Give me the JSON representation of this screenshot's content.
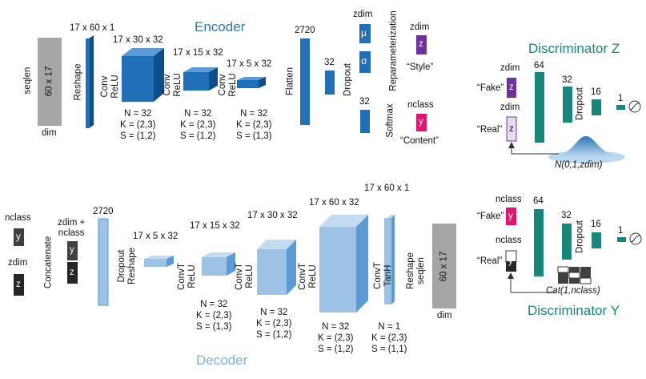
{
  "encoder": {
    "title": "Encoder",
    "input": {
      "side_label": "seqlen",
      "inner_label": "60 x 17",
      "bottom_label": "dim"
    },
    "reshape": {
      "dims": "17 x 60 x 1",
      "op": "Reshape"
    },
    "conv1": {
      "dims": "17 x 30 x 32",
      "op": "Conv\nReLU",
      "n": "N = 32",
      "k": "K = (2,3)",
      "s": "S = (1,2)"
    },
    "conv2": {
      "dims": "17 x 15 x 32",
      "op": "Conv\nReLU",
      "n": "N = 32",
      "k": "K = (2,3)",
      "s": "S = (1,2)"
    },
    "conv3": {
      "dims": "17 x 5 x 32",
      "op": "Conv\nReLU",
      "n": "N = 32",
      "k": "K = (2,3)",
      "s": "S = (1,3)"
    },
    "flatten": {
      "dims": "2720",
      "op": "Flatten"
    },
    "dense32a": {
      "dims": "32",
      "op": "Dropout"
    },
    "dense32b": {
      "dims": "32",
      "op": "Softmax"
    },
    "zdim_label": "zdim",
    "mu": "μ",
    "sigma": "σ",
    "reparam": "Reparameterization",
    "z_label_top": "zdim",
    "z": "z",
    "style": "“Style”",
    "nclass_label": "nclass",
    "y": "y",
    "content": "“Content”"
  },
  "disc_z": {
    "title": "Discriminator Z",
    "fake": "“Fake”",
    "real": "“Real”",
    "zdim_fake": "zdim",
    "zdim_real": "zdim",
    "z_fake": "z",
    "z_real": "z",
    "l64": "64",
    "l32": "32",
    "l16": "16",
    "l1": "1",
    "dropout": "Dropout",
    "prior": "N(0,1,zdim)"
  },
  "decoder": {
    "title": "Decoder",
    "nclass_label": "nclass",
    "y": "y",
    "zdim_label": "zdim",
    "z": "z",
    "concat": "Concatenate",
    "concat_label": "zdim +\nnclass",
    "cy": "y",
    "cz": "z",
    "d2720": "2720",
    "dropout_reshape": "Dropout\nReshape",
    "t1": {
      "dims": "17 x 5 x 32"
    },
    "t2": {
      "dims": "17 x 15 x 32",
      "op": "ConvT\nReLU",
      "n": "N = 32",
      "k": "K = (2,3)",
      "s": "S = (1,3)"
    },
    "t3": {
      "dims": "17 x 30 x 32",
      "op": "ConvT\nReLU",
      "n": "N = 32",
      "k": "K = (2,3)",
      "s": "S = (1,2)"
    },
    "t4": {
      "dims": "17 x 60 x 32",
      "op": "ConvT\nReLU",
      "n": "N = 32",
      "k": "K = (2,3)",
      "s": "S = (1,2)"
    },
    "t5": {
      "dims": "17 x 60 x 1",
      "op": "ConvT\nTanH",
      "n": "N = 1",
      "k": "K = (2,3)",
      "s": "S = (1,1)"
    },
    "reshape_seqlen": "Reshape\nseqlen",
    "output_inner": "60 x 17",
    "output_bottom": "dim"
  },
  "disc_y": {
    "title": "Discriminator Y",
    "fake": "“Fake”",
    "real": "“Real”",
    "nclass_fake": "nclass",
    "nclass_real": "nclass",
    "y_fake": "y",
    "y_real": "y",
    "l64": "64",
    "l32": "32",
    "l16": "16",
    "l1": "1",
    "dropout": "Dropout",
    "prior": "Cat(1,nclass)"
  },
  "colors": {
    "enc_blue": "#1f6fb9",
    "dec_blue": "#9cc3e6",
    "teal": "#16877a",
    "purple": "#7030a0",
    "magenta": "#e0166e",
    "gray": "#a6a6a6",
    "dark": "#262626"
  }
}
